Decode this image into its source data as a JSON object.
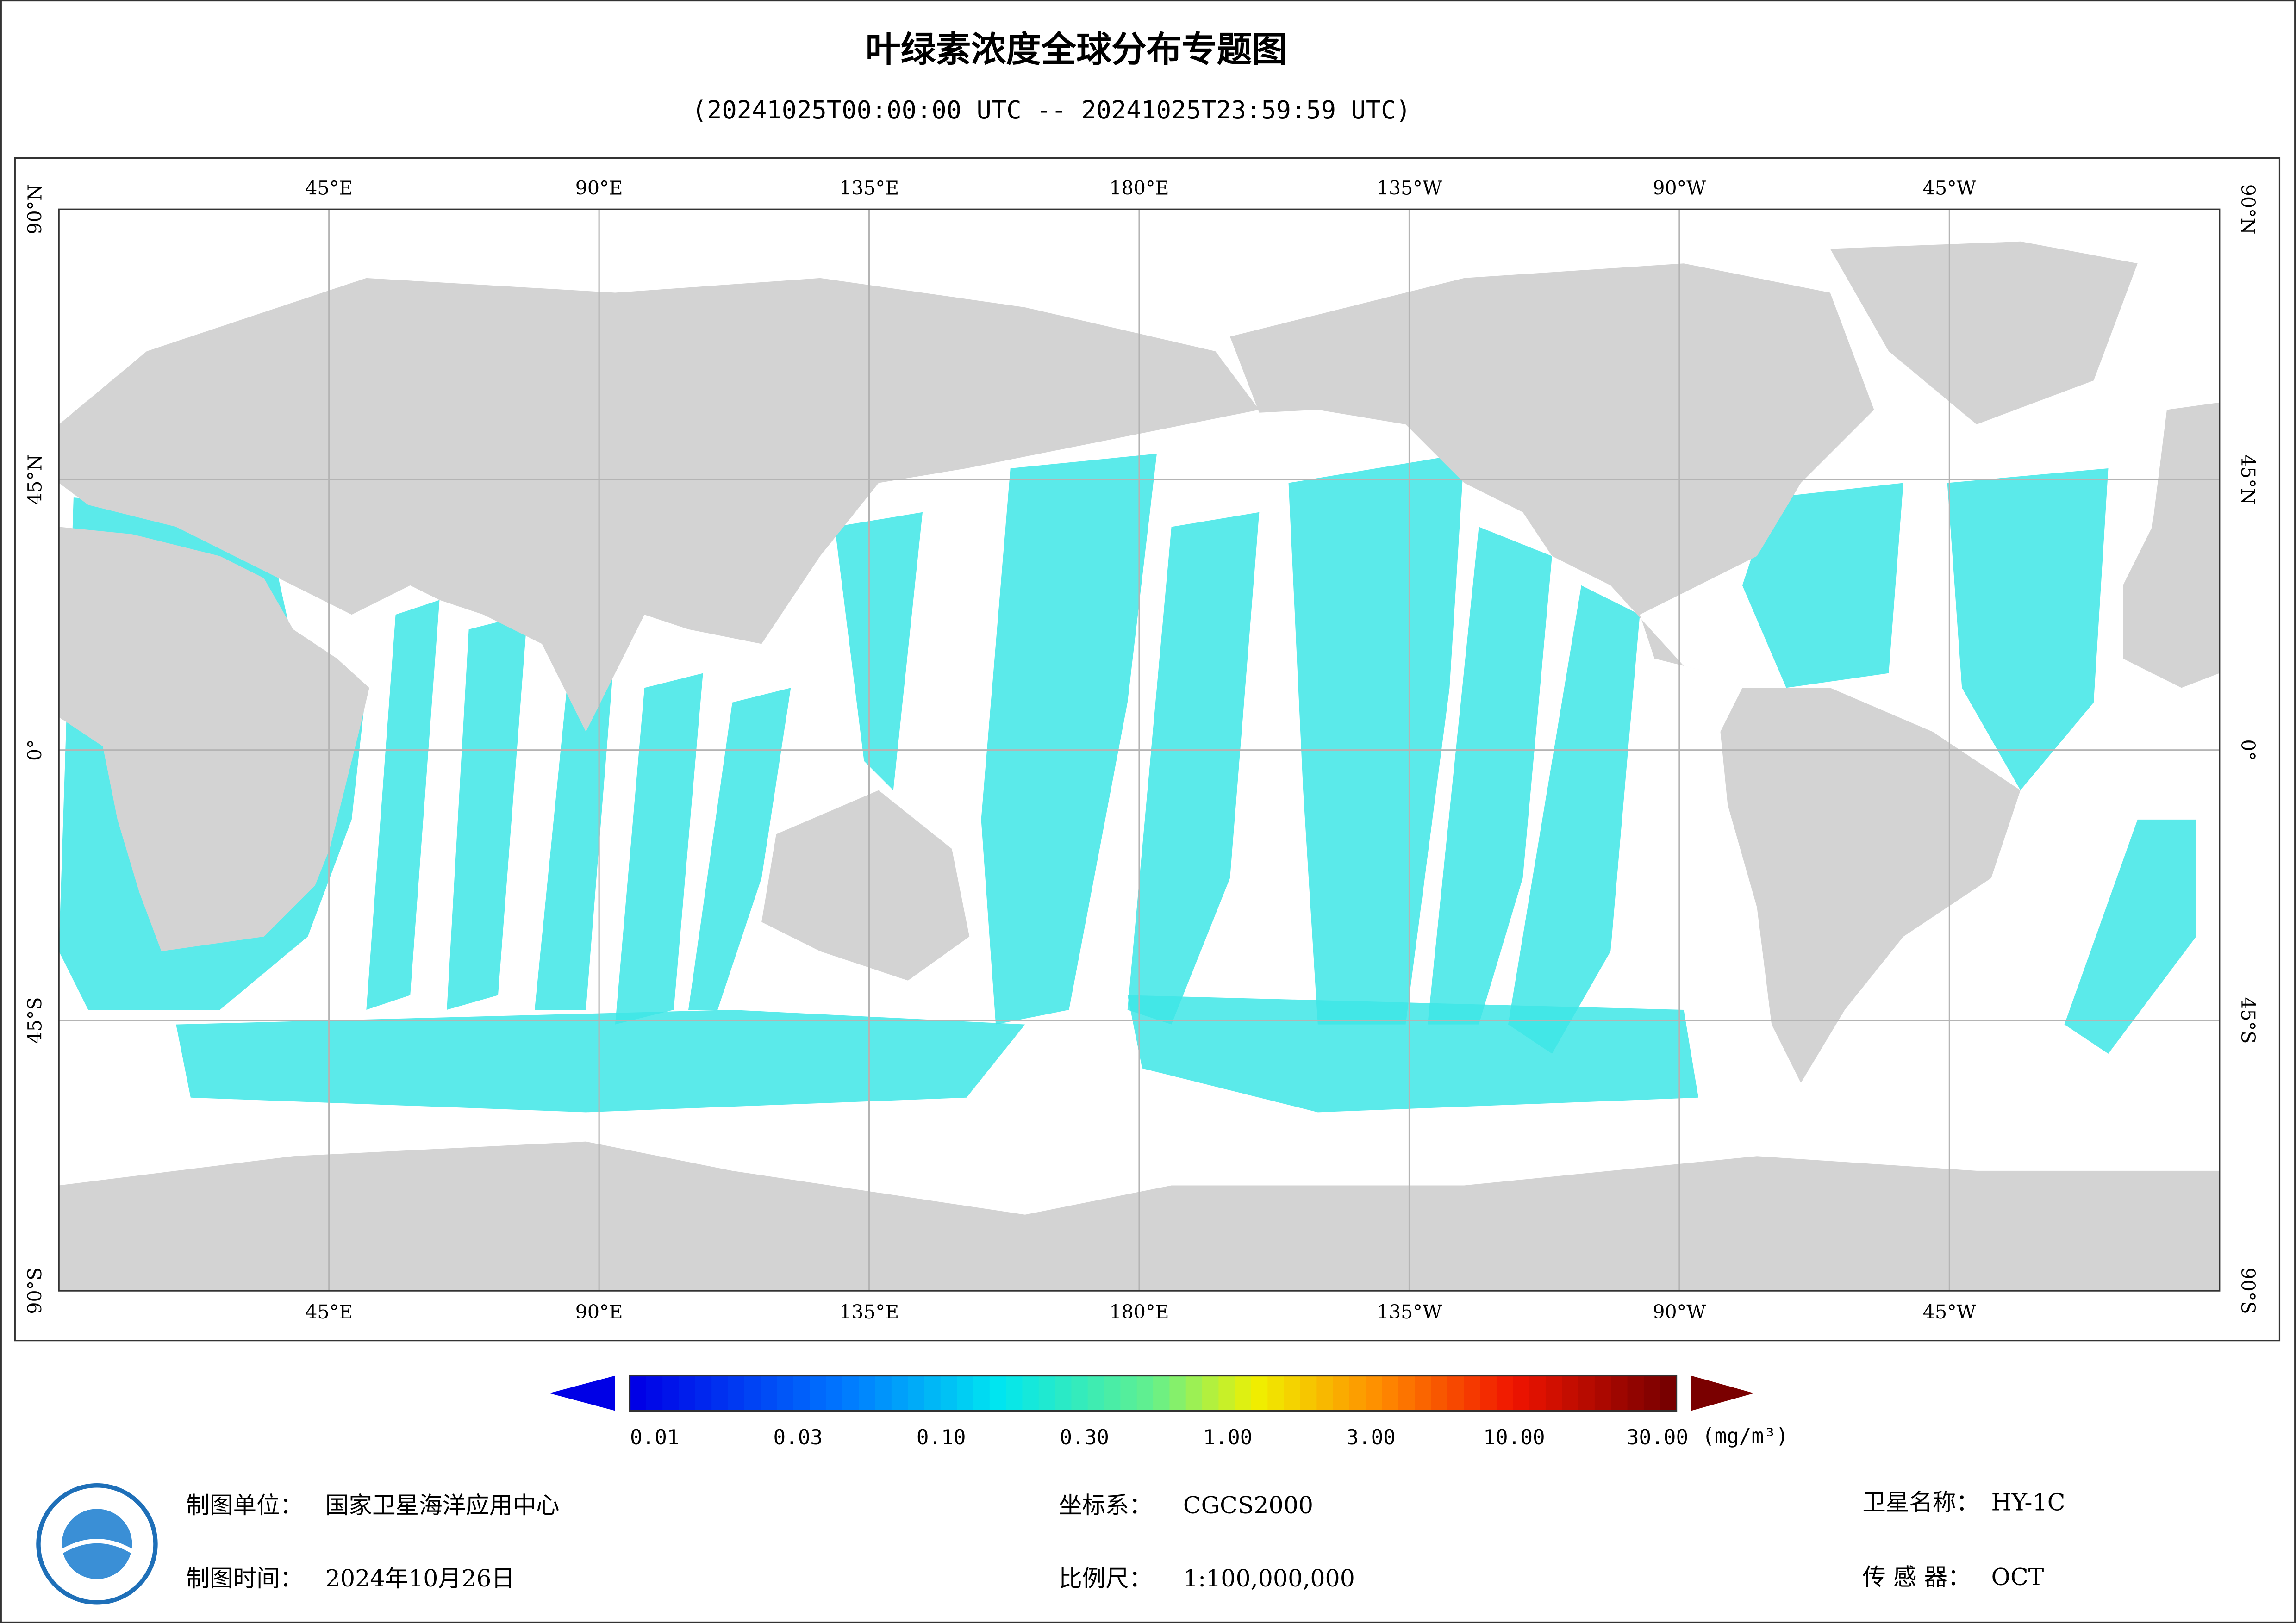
{
  "header": {
    "title": "叶绿素浓度全球分布专题图",
    "subtitle": "(20241025T00:00:00 UTC -- 20241025T23:59:59 UTC)"
  },
  "map": {
    "lon_labels": [
      "45°E",
      "90°E",
      "135°E",
      "180°E",
      "135°W",
      "90°W",
      "45°W"
    ],
    "lat_labels": [
      "90°N",
      "45°N",
      "0°",
      "45°S",
      "90°S"
    ]
  },
  "legend": {
    "ticks": [
      "0.01",
      "0.03",
      "0.10",
      "0.30",
      "1.00",
      "3.00",
      "10.00",
      "30.00"
    ],
    "unit": "(mg/m³)"
  },
  "footer": {
    "items": [
      {
        "label": "制图单位：",
        "value": "国家卫星海洋应用中心"
      },
      {
        "label": "制图时间：",
        "value": "2024年10月26日"
      },
      {
        "label": "坐标系：",
        "value": "CGCS2000"
      },
      {
        "label": "比例尺：",
        "value": "1:100,000,000"
      },
      {
        "label": "卫星名称：",
        "value": "HY-1C"
      },
      {
        "label": "传 感 器：",
        "value": "OCT"
      }
    ]
  }
}
